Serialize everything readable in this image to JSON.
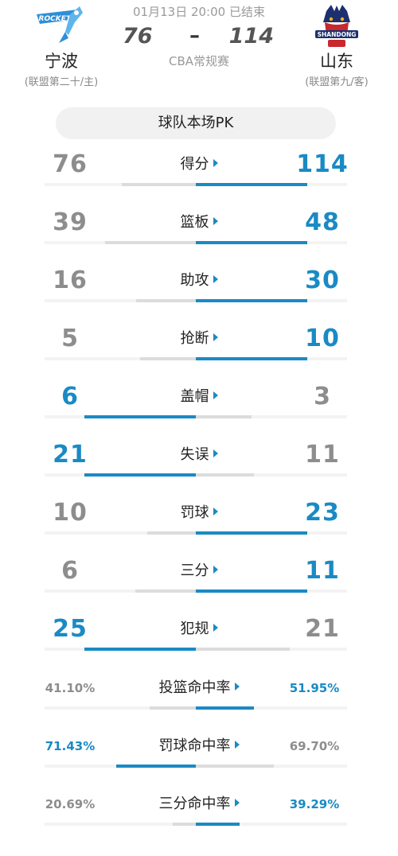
{
  "match": {
    "time": "01月13日 20:00 已结束",
    "home_score": "76",
    "away_score": "114",
    "dash": "–",
    "league": "CBA常规赛"
  },
  "home": {
    "name": "宁波",
    "sub": "(联盟第二十/主)",
    "logo_text": "ROCKETS"
  },
  "away": {
    "name": "山东",
    "sub": "(联盟第九/客)",
    "logo_text": "SHANDONG"
  },
  "pk_title": "球队本场PK",
  "colors": {
    "accent": "#1a8ac4",
    "muted": "#8d8d8d",
    "bar_grey": "#dcdcdc"
  },
  "stats": [
    {
      "label": "得分",
      "home": "76",
      "away": "114",
      "home_num": 76,
      "away_num": 114,
      "max": 114,
      "type": "int"
    },
    {
      "label": "篮板",
      "home": "39",
      "away": "48",
      "home_num": 39,
      "away_num": 48,
      "max": 48,
      "type": "int"
    },
    {
      "label": "助攻",
      "home": "16",
      "away": "30",
      "home_num": 16,
      "away_num": 30,
      "max": 30,
      "type": "int"
    },
    {
      "label": "抢断",
      "home": "5",
      "away": "10",
      "home_num": 5,
      "away_num": 10,
      "max": 10,
      "type": "int"
    },
    {
      "label": "盖帽",
      "home": "6",
      "away": "3",
      "home_num": 6,
      "away_num": 3,
      "max": 6,
      "type": "int"
    },
    {
      "label": "失误",
      "home": "21",
      "away": "11",
      "home_num": 21,
      "away_num": 11,
      "max": 21,
      "type": "int"
    },
    {
      "label": "罚球",
      "home": "10",
      "away": "23",
      "home_num": 10,
      "away_num": 23,
      "max": 23,
      "type": "int"
    },
    {
      "label": "三分",
      "home": "6",
      "away": "11",
      "home_num": 6,
      "away_num": 11,
      "max": 11,
      "type": "int"
    },
    {
      "label": "犯规",
      "home": "25",
      "away": "21",
      "home_num": 25,
      "away_num": 21,
      "max": 25,
      "type": "int"
    },
    {
      "label": "投篮命中率",
      "home": "41.10%",
      "away": "51.95%",
      "home_num": 41.1,
      "away_num": 51.95,
      "max": 100,
      "type": "pct"
    },
    {
      "label": "罚球命中率",
      "home": "71.43%",
      "away": "69.70%",
      "home_num": 71.43,
      "away_num": 69.7,
      "max": 100,
      "type": "pct"
    },
    {
      "label": "三分命中率",
      "home": "20.69%",
      "away": "39.29%",
      "home_num": 20.69,
      "away_num": 39.29,
      "max": 100,
      "type": "pct"
    }
  ]
}
